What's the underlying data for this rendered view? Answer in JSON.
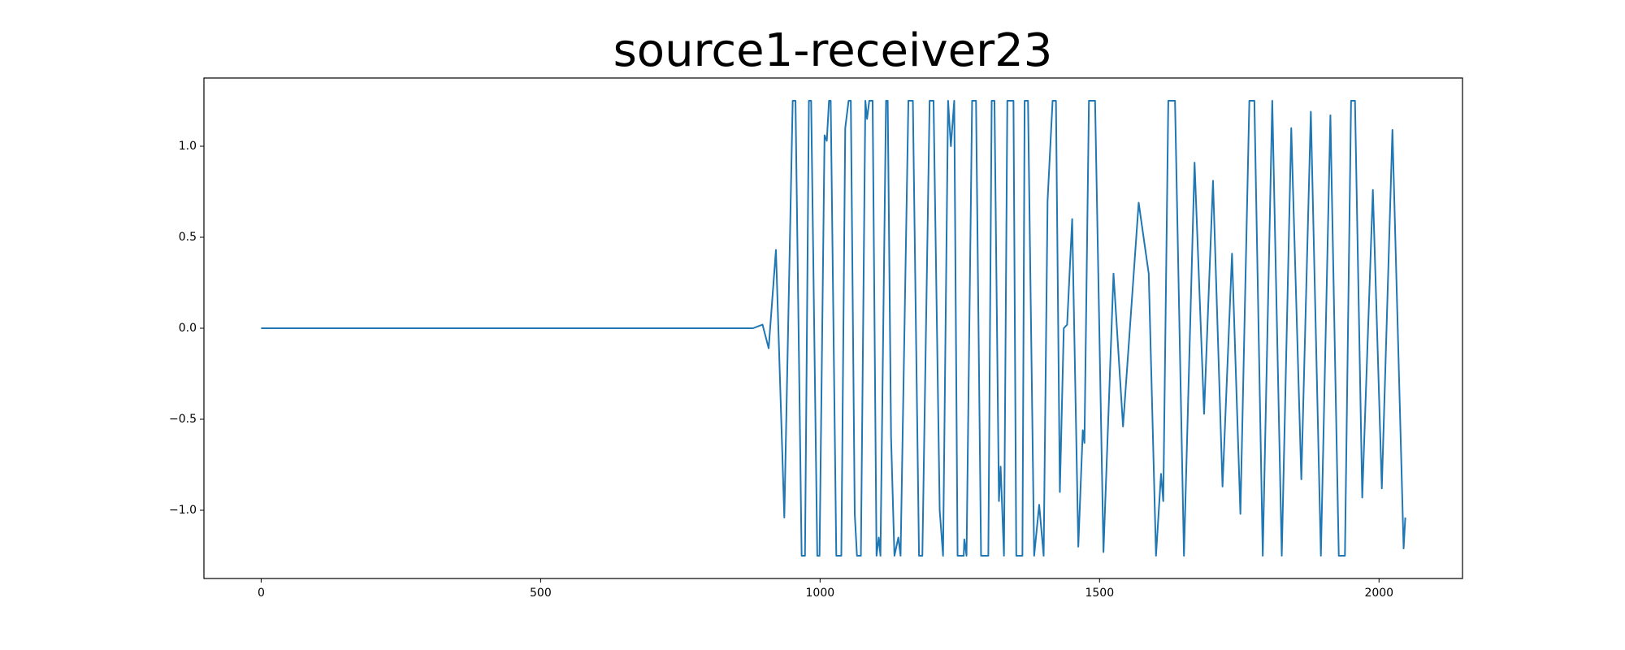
{
  "chart_data": {
    "type": "line",
    "title": "source1-receiver23",
    "color": "#1f77b4",
    "grid": false,
    "xlim": [
      -102.35,
      2149.35
    ],
    "ylim": [
      -1.375,
      1.375
    ],
    "xticks": [
      0,
      500,
      1000,
      1500,
      2000
    ],
    "yticks": [
      {
        "value": -1,
        "label": "−1.0"
      },
      {
        "value": -0.5,
        "label": "−0.5"
      },
      {
        "value": 0,
        "label": "0.0"
      },
      0.5,
      {
        "value": 1,
        "label": "1.0"
      }
    ],
    "x": [
      0,
      880,
      897,
      908,
      921,
      936,
      951,
      956,
      967,
      973,
      980,
      984,
      995,
      999,
      1008,
      1012,
      1016,
      1019,
      1029,
      1038,
      1045,
      1051,
      1055,
      1062,
      1066,
      1073,
      1081,
      1084,
      1088,
      1094,
      1101,
      1105,
      1108,
      1118,
      1121,
      1127,
      1133,
      1140,
      1144,
      1158,
      1166,
      1177,
      1183,
      1196,
      1203,
      1214,
      1220,
      1229,
      1234,
      1240,
      1246,
      1257,
      1258,
      1262,
      1272,
      1279,
      1288,
      1301,
      1307,
      1312,
      1320,
      1323,
      1329,
      1335,
      1346,
      1351,
      1362,
      1366,
      1372,
      1383,
      1392,
      1400,
      1407,
      1416,
      1422,
      1429,
      1436,
      1442,
      1451,
      1462,
      1470,
      1473,
      1481,
      1492,
      1507,
      1525,
      1542,
      1570,
      1588,
      1601,
      1610,
      1614,
      1623,
      1635,
      1651,
      1670,
      1687,
      1703,
      1720,
      1737,
      1752,
      1768,
      1777,
      1792,
      1809,
      1826,
      1843,
      1861,
      1878,
      1896,
      1913,
      1928,
      1939,
      1950,
      1957,
      1970,
      1989,
      2005,
      2024,
      2044,
      2047
    ],
    "values": [
      0,
      0,
      0.02,
      -0.11,
      0.43,
      -1.04,
      1.25,
      1.25,
      -1.25,
      -1.25,
      1.25,
      1.25,
      -1.25,
      -1.25,
      1.06,
      1.03,
      1.25,
      1.25,
      -1.25,
      -1.25,
      1.1,
      1.25,
      1.25,
      -1.02,
      -1.25,
      -1.25,
      1.25,
      1.15,
      1.25,
      1.25,
      -1.25,
      -1.15,
      -1.25,
      1.25,
      1.25,
      -0.6,
      -1.25,
      -1.15,
      -1.25,
      1.25,
      1.25,
      -1.25,
      -1.25,
      1.25,
      1.25,
      -1.0,
      -1.25,
      1.25,
      1.0,
      1.25,
      -1.25,
      -1.25,
      -1.16,
      -1.25,
      1.25,
      1.25,
      -1.25,
      -1.25,
      1.25,
      1.25,
      -0.95,
      -0.76,
      -1.25,
      1.25,
      1.25,
      -1.25,
      -1.25,
      1.25,
      1.25,
      -1.25,
      -0.97,
      -1.25,
      0.7,
      1.25,
      1.25,
      -0.9,
      0.0,
      0.02,
      0.6,
      -1.2,
      -0.56,
      -0.63,
      1.25,
      1.25,
      -1.23,
      0.3,
      -0.54,
      0.69,
      0.3,
      -1.25,
      -0.8,
      -0.95,
      1.25,
      1.25,
      -1.25,
      0.91,
      -0.47,
      0.81,
      -0.87,
      0.41,
      -1.02,
      1.25,
      1.25,
      -1.25,
      1.25,
      -1.25,
      1.1,
      -0.83,
      1.19,
      -1.25,
      1.17,
      -1.25,
      -1.25,
      1.25,
      1.25,
      -0.93,
      0.76,
      -0.88,
      1.09,
      -1.21,
      -1.04
    ]
  }
}
